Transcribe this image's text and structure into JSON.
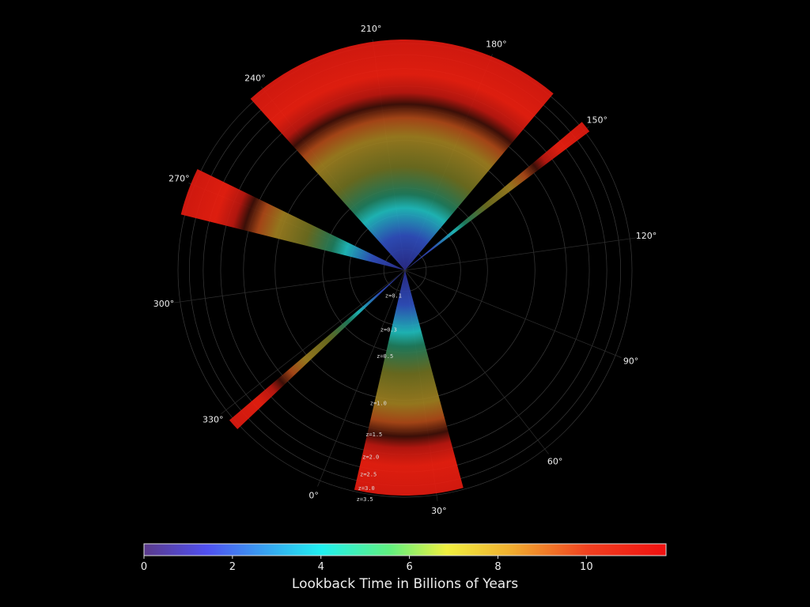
{
  "chart_data": {
    "type": "polar",
    "angle_ticks": [
      {
        "value": 0,
        "label": "0°"
      },
      {
        "value": 30,
        "label": "30°"
      },
      {
        "value": 60,
        "label": "60°"
      },
      {
        "value": 90,
        "label": "90°"
      },
      {
        "value": 120,
        "label": "120°"
      },
      {
        "value": 150,
        "label": "150°"
      },
      {
        "value": 180,
        "label": "180°"
      },
      {
        "value": 210,
        "label": "210°"
      },
      {
        "value": 240,
        "label": "240°"
      },
      {
        "value": 270,
        "label": "270°"
      },
      {
        "value": 300,
        "label": "300°"
      },
      {
        "value": 330,
        "label": "330°"
      }
    ],
    "radial_ticks": [
      {
        "value": 0.1,
        "label": "z=0.1"
      },
      {
        "value": 0.3,
        "label": "z=0.3"
      },
      {
        "value": 0.5,
        "label": "z=0.5"
      },
      {
        "value": 1.0,
        "label": "z=1.0"
      },
      {
        "value": 1.5,
        "label": "z=1.5"
      },
      {
        "value": 2.0,
        "label": "z=2.0"
      },
      {
        "value": 2.5,
        "label": "z=2.5"
      },
      {
        "value": 3.0,
        "label": "z=3.0"
      },
      {
        "value": 3.5,
        "label": "z=3.5"
      }
    ],
    "colorbar": {
      "label": "Lookback Time in Billions of Years",
      "lim": [
        0,
        11.8
      ],
      "ticks": [
        0,
        2,
        4,
        6,
        8,
        10
      ]
    }
  }
}
